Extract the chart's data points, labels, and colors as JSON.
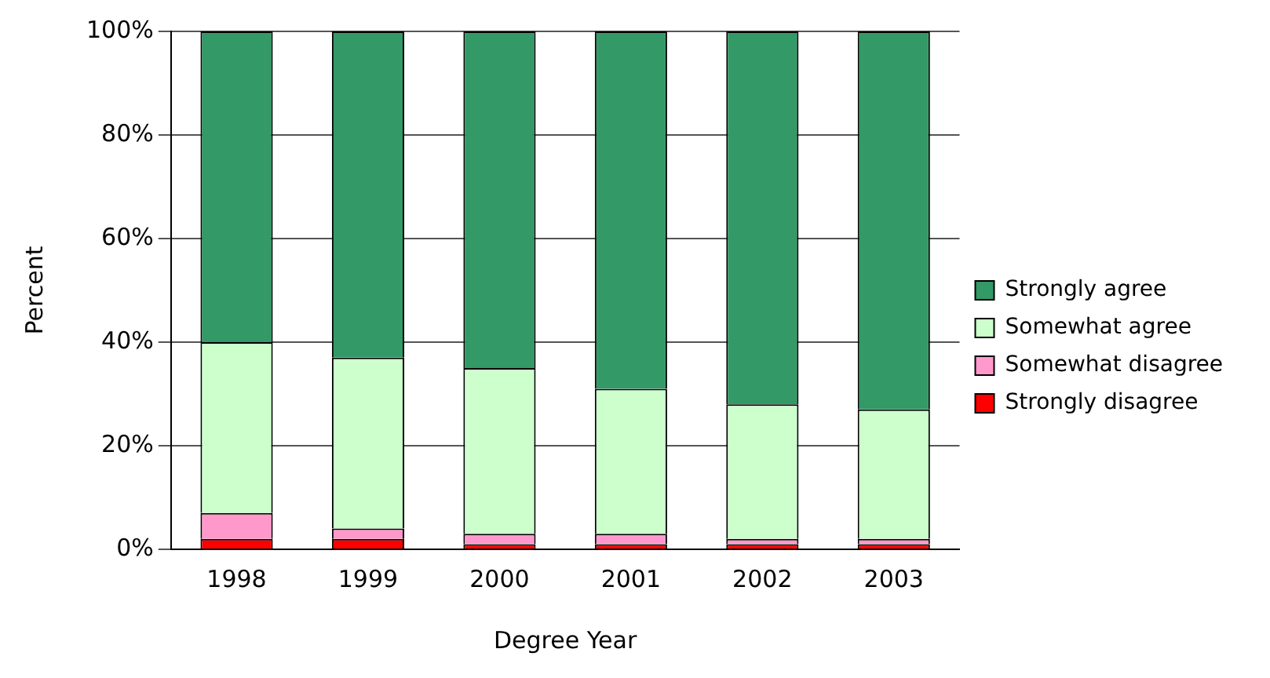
{
  "chart_data": {
    "type": "bar",
    "stacked": true,
    "xlabel": "Degree Year",
    "ylabel": "Percent",
    "categories": [
      "1998",
      "1999",
      "2000",
      "2001",
      "2002",
      "2003"
    ],
    "series": [
      {
        "name": "Strongly disagree",
        "color": "#ff0000",
        "values": [
          2,
          2,
          1,
          1,
          1,
          1
        ]
      },
      {
        "name": "Somewhat disagree",
        "color": "#ff99cc",
        "values": [
          5,
          2,
          2,
          2,
          1,
          1
        ]
      },
      {
        "name": "Somewhat agree",
        "color": "#ccffcc",
        "values": [
          33,
          33,
          32,
          28,
          26,
          25
        ]
      },
      {
        "name": "Strongly agree",
        "color": "#339966",
        "values": [
          60,
          63,
          65,
          69,
          72,
          73
        ]
      }
    ],
    "ylim": [
      0,
      100
    ],
    "yticks": [
      {
        "value": 0,
        "label": "0%"
      },
      {
        "value": 20,
        "label": "20%"
      },
      {
        "value": 40,
        "label": "40%"
      },
      {
        "value": 60,
        "label": "60%"
      },
      {
        "value": 80,
        "label": "80%"
      },
      {
        "value": 100,
        "label": "100%"
      }
    ],
    "grid": "y",
    "legend": "right"
  }
}
